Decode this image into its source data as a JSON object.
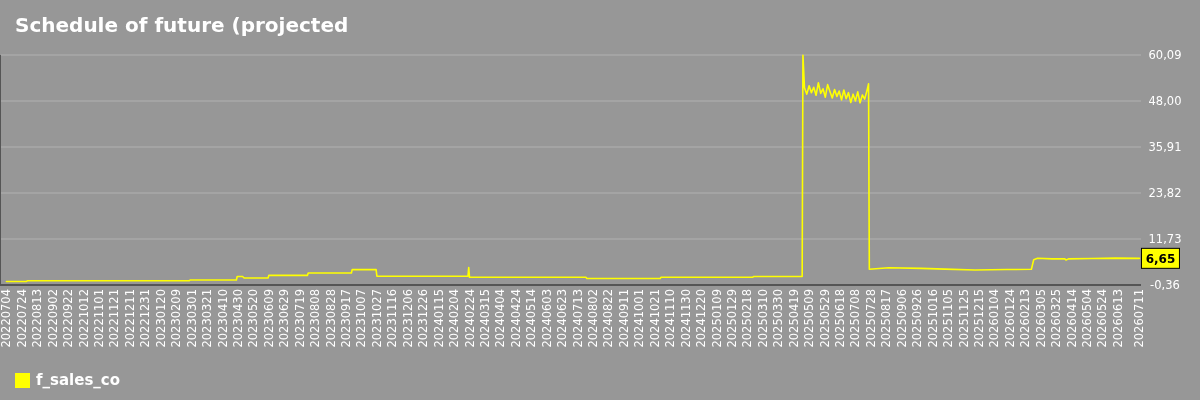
{
  "chart_data": {
    "type": "line",
    "title": "Schedule of future (projected",
    "legend": "bottom left",
    "grid": "y",
    "marker": "none",
    "line_style": "solid",
    "xlim": [
      "2022-06-27",
      "2026-07-13"
    ],
    "ylim": [
      -0.36,
      60.09
    ],
    "yticks": [
      {
        "value": -0.36,
        "label": "-0,36"
      },
      {
        "value": 11.73,
        "label": "11,73"
      },
      {
        "value": 23.82,
        "label": "23,82"
      },
      {
        "value": 35.91,
        "label": "35,91"
      },
      {
        "value": 48.0,
        "label": "48,00"
      },
      {
        "value": 60.09,
        "label": "60,09"
      }
    ],
    "xticks": [
      {
        "value": "2022-07-04",
        "label": "20220704"
      },
      {
        "value": "2022-07-24",
        "label": "20220724"
      },
      {
        "value": "2022-08-13",
        "label": "20220813"
      },
      {
        "value": "2022-09-02",
        "label": "20220902"
      },
      {
        "value": "2022-09-22",
        "label": "20220922"
      },
      {
        "value": "2022-10-12",
        "label": "20221012"
      },
      {
        "value": "2022-11-01",
        "label": "20221101"
      },
      {
        "value": "2022-11-21",
        "label": "20221121"
      },
      {
        "value": "2022-12-11",
        "label": "20221211"
      },
      {
        "value": "2022-12-31",
        "label": "20221231"
      },
      {
        "value": "2023-01-20",
        "label": "20230120"
      },
      {
        "value": "2023-02-09",
        "label": "20230209"
      },
      {
        "value": "2023-03-01",
        "label": "20230301"
      },
      {
        "value": "2023-03-21",
        "label": "20230321"
      },
      {
        "value": "2023-04-10",
        "label": "20230410"
      },
      {
        "value": "2023-04-30",
        "label": "20230430"
      },
      {
        "value": "2023-05-20",
        "label": "20230520"
      },
      {
        "value": "2023-06-09",
        "label": "20230609"
      },
      {
        "value": "2023-06-29",
        "label": "20230629"
      },
      {
        "value": "2023-07-19",
        "label": "20230719"
      },
      {
        "value": "2023-08-08",
        "label": "20230808"
      },
      {
        "value": "2023-08-28",
        "label": "20230828"
      },
      {
        "value": "2023-09-17",
        "label": "20230917"
      },
      {
        "value": "2023-10-07",
        "label": "20231007"
      },
      {
        "value": "2023-10-27",
        "label": "20231027"
      },
      {
        "value": "2023-11-16",
        "label": "20231116"
      },
      {
        "value": "2023-12-06",
        "label": "20231206"
      },
      {
        "value": "2023-12-26",
        "label": "20231226"
      },
      {
        "value": "2024-01-15",
        "label": "20240115"
      },
      {
        "value": "2024-02-04",
        "label": "20240204"
      },
      {
        "value": "2024-02-24",
        "label": "20240224"
      },
      {
        "value": "2024-03-15",
        "label": "20240315"
      },
      {
        "value": "2024-04-04",
        "label": "20240404"
      },
      {
        "value": "2024-04-24",
        "label": "20240424"
      },
      {
        "value": "2024-05-14",
        "label": "20240514"
      },
      {
        "value": "2024-06-03",
        "label": "20240603"
      },
      {
        "value": "2024-06-23",
        "label": "20240623"
      },
      {
        "value": "2024-07-13",
        "label": "20240713"
      },
      {
        "value": "2024-08-02",
        "label": "20240802"
      },
      {
        "value": "2024-08-22",
        "label": "20240822"
      },
      {
        "value": "2024-09-11",
        "label": "20240911"
      },
      {
        "value": "2024-10-01",
        "label": "20241001"
      },
      {
        "value": "2024-10-21",
        "label": "20241021"
      },
      {
        "value": "2024-11-10",
        "label": "20241110"
      },
      {
        "value": "2024-11-30",
        "label": "20241130"
      },
      {
        "value": "2024-12-20",
        "label": "20241220"
      },
      {
        "value": "2025-01-09",
        "label": "20250109"
      },
      {
        "value": "2025-01-29",
        "label": "20250129"
      },
      {
        "value": "2025-02-18",
        "label": "20250218"
      },
      {
        "value": "2025-03-10",
        "label": "20250310"
      },
      {
        "value": "2025-03-30",
        "label": "20250330"
      },
      {
        "value": "2025-04-19",
        "label": "20250419"
      },
      {
        "value": "2025-05-09",
        "label": "20250509"
      },
      {
        "value": "2025-05-29",
        "label": "20250529"
      },
      {
        "value": "2025-06-18",
        "label": "20250618"
      },
      {
        "value": "2025-07-08",
        "label": "20250708"
      },
      {
        "value": "2025-07-28",
        "label": "20250728"
      },
      {
        "value": "2025-08-17",
        "label": "20250817"
      },
      {
        "value": "2025-09-06",
        "label": "20250906"
      },
      {
        "value": "2025-09-26",
        "label": "20250926"
      },
      {
        "value": "2025-10-16",
        "label": "20251016"
      },
      {
        "value": "2025-11-05",
        "label": "20251105"
      },
      {
        "value": "2025-11-25",
        "label": "20251125"
      },
      {
        "value": "2025-12-15",
        "label": "20251215"
      },
      {
        "value": "2026-01-04",
        "label": "20260104"
      },
      {
        "value": "2026-01-24",
        "label": "20260124"
      },
      {
        "value": "2026-02-13",
        "label": "20260213"
      },
      {
        "value": "2026-03-05",
        "label": "20260305"
      },
      {
        "value": "2026-03-25",
        "label": "20260325"
      },
      {
        "value": "2026-04-14",
        "label": "20260414"
      },
      {
        "value": "2026-05-04",
        "label": "20260504"
      },
      {
        "value": "2026-05-24",
        "label": "20260524"
      },
      {
        "value": "2026-06-13",
        "label": "20260613"
      },
      {
        "value": "2026-07-11",
        "label": "20260711"
      }
    ],
    "annotations": [
      {
        "text": "6,65",
        "x": "2026-07-11",
        "y": 6.65
      }
    ],
    "series": [
      {
        "name": "f_sales_co",
        "color": "#ffff00",
        "x": [
          "2022-07-04",
          "2022-07-30",
          "2022-07-31",
          "2023-02-26",
          "2023-02-27",
          "2023-04-28",
          "2023-04-29",
          "2023-05-06",
          "2023-05-08",
          "2023-06-08",
          "2023-06-09",
          "2023-07-29",
          "2023-07-30",
          "2023-09-24",
          "2023-09-25",
          "2023-10-26",
          "2023-10-27",
          "2024-02-22",
          "2024-02-23",
          "2024-02-24",
          "2024-07-24",
          "2024-07-25",
          "2024-10-28",
          "2024-10-29",
          "2025-02-25",
          "2025-02-26",
          "2025-04-30",
          "2025-05-01",
          "2025-05-03",
          "2025-05-06",
          "2025-05-09",
          "2025-05-12",
          "2025-05-15",
          "2025-05-18",
          "2025-05-21",
          "2025-05-24",
          "2025-05-27",
          "2025-05-30",
          "2025-06-02",
          "2025-06-05",
          "2025-06-08",
          "2025-06-11",
          "2025-06-14",
          "2025-06-17",
          "2025-06-20",
          "2025-06-23",
          "2025-06-26",
          "2025-06-29",
          "2025-07-02",
          "2025-07-05",
          "2025-07-08",
          "2025-07-11",
          "2025-07-14",
          "2025-07-17",
          "2025-07-20",
          "2025-07-23",
          "2025-07-25",
          "2025-07-26",
          "2025-08-20",
          "2025-10-01",
          "2025-11-01",
          "2025-12-10",
          "2026-01-20",
          "2026-02-21",
          "2026-02-24",
          "2026-03-01",
          "2026-03-20",
          "2026-04-05",
          "2026-04-07",
          "2026-04-10",
          "2026-05-10",
          "2026-06-10",
          "2026-07-11"
        ],
        "values": [
          0.56,
          0.56,
          0.74,
          0.74,
          0.95,
          0.95,
          1.87,
          1.87,
          1.48,
          1.48,
          2.16,
          2.16,
          2.79,
          2.79,
          3.69,
          3.69,
          1.95,
          1.95,
          4.2,
          1.66,
          1.66,
          1.35,
          1.35,
          1.66,
          1.66,
          1.87,
          1.87,
          60.0,
          51.5,
          49.8,
          52.0,
          50.2,
          51.6,
          49.5,
          52.8,
          50.0,
          51.2,
          49.0,
          52.3,
          50.5,
          48.8,
          51.0,
          49.2,
          50.6,
          48.3,
          50.9,
          48.6,
          50.2,
          47.6,
          49.8,
          48.0,
          50.4,
          47.5,
          49.6,
          48.5,
          50.8,
          52.5,
          3.77,
          4.19,
          4.0,
          3.8,
          3.58,
          3.7,
          3.77,
          6.3,
          6.66,
          6.5,
          6.55,
          6.2,
          6.5,
          6.6,
          6.7,
          6.65
        ]
      }
    ]
  }
}
